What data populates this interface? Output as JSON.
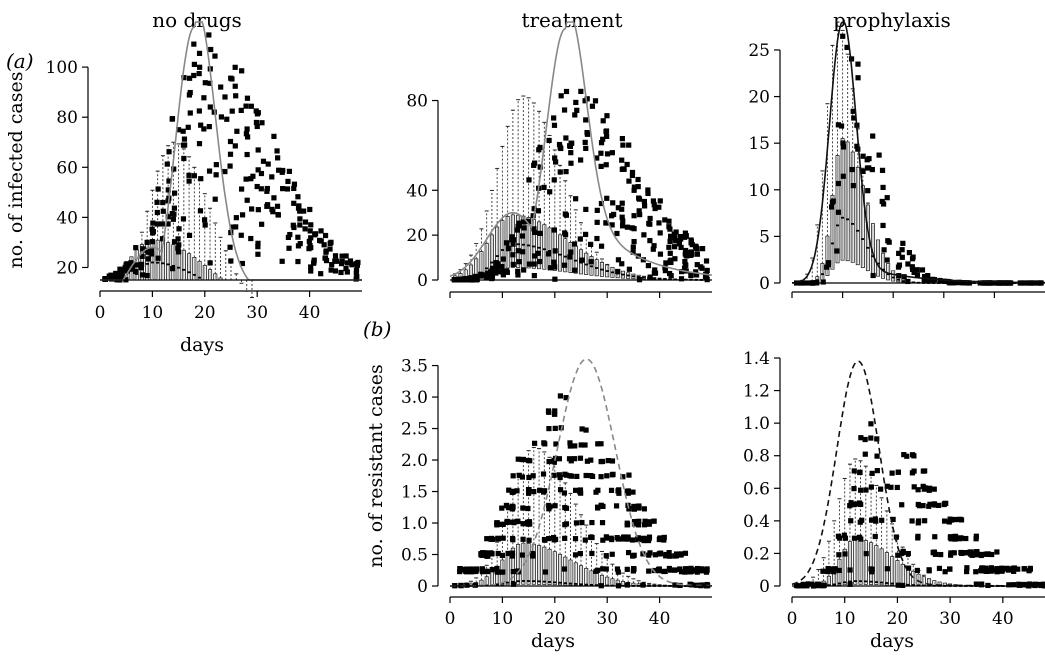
{
  "panel_labels": [
    "(a)",
    "(b)"
  ],
  "chart_data": [
    {
      "id": "infected-no-drugs",
      "type": "box",
      "title": "no drugs",
      "xlabel": "days",
      "ylabel": "no. of infected cases",
      "xlim": [
        0,
        50
      ],
      "ylim": [
        15,
        118
      ],
      "xticks": [
        0,
        10,
        20,
        30,
        40
      ],
      "yticks": [
        20,
        40,
        60,
        80,
        100
      ],
      "ytick_labels": [
        "20",
        "40",
        "60",
        "80",
        "100"
      ],
      "show_xtick_labels": true,
      "show_xlabel": true,
      "curve": {
        "style": "solid-grey",
        "peak_day": 18,
        "peak_value": 116,
        "shoulder_day": 10,
        "shoulder_value": 28,
        "sigma": 3.6,
        "tail": 45
      },
      "median": {
        "peak_day": 10,
        "peak_value": 22,
        "sigma": 7,
        "skew": 1.6
      },
      "q3": {
        "peak_day": 10,
        "peak_value": 31,
        "sigma": 8,
        "skew": 1.4
      },
      "whisker": {
        "peak_day": 14,
        "peak_value": 70,
        "sigma": 6,
        "skew": 1.2
      },
      "outliers": {
        "peak_day": 20,
        "peak_value": 100,
        "sigma": 9,
        "skew": 1.4,
        "count": 300,
        "seed": 11,
        "floor": 15
      }
    },
    {
      "id": "infected-treatment",
      "type": "box",
      "title": "treatment",
      "xlabel": "",
      "ylabel": "",
      "xlim": [
        0,
        50
      ],
      "ylim": [
        0,
        115
      ],
      "xticks": [
        0,
        10,
        20,
        30,
        40
      ],
      "yticks": [
        0,
        20,
        40,
        80
      ],
      "ytick_labels": [
        "0",
        "20",
        "40",
        "80"
      ],
      "show_xtick_labels": false,
      "show_xlabel": false,
      "curve": {
        "style": "solid-grey",
        "peak_day": 22,
        "peak_value": 112,
        "shoulder_day": 12,
        "shoulder_value": 30,
        "sigma": 3.6,
        "tail": 50
      },
      "median": {
        "peak_day": 12,
        "peak_value": 16,
        "sigma": 6,
        "skew": 1.8
      },
      "q3": {
        "peak_day": 12,
        "peak_value": 29,
        "sigma": 7,
        "skew": 1.5
      },
      "whisker": {
        "peak_day": 14,
        "peak_value": 82,
        "sigma": 6,
        "skew": 1.2
      },
      "outliers": {
        "peak_day": 22,
        "peak_value": 90,
        "sigma": 9,
        "skew": 1.5,
        "count": 340,
        "seed": 23,
        "floor": 0
      }
    },
    {
      "id": "infected-prophylaxis",
      "type": "box",
      "title": "prophylaxis",
      "xlabel": "",
      "ylabel": "",
      "xlim": [
        0,
        50
      ],
      "ylim": [
        0,
        28
      ],
      "xticks": [
        0,
        10,
        20,
        30,
        40
      ],
      "yticks": [
        0,
        5,
        10,
        15,
        20,
        25
      ],
      "ytick_labels": [
        "0",
        "5",
        "10",
        "15",
        "20",
        "25"
      ],
      "show_xtick_labels": false,
      "show_xlabel": false,
      "curve": {
        "style": "solid-black",
        "peak_day": 10,
        "peak_value": 28,
        "shoulder_day": 10,
        "shoulder_value": 0,
        "sigma": 2.6,
        "tail": 3
      },
      "median": {
        "peak_day": 10,
        "peak_value": 7,
        "sigma": 3,
        "skew": 1.5
      },
      "q3": {
        "peak_day": 10,
        "peak_value": 15.5,
        "sigma": 3,
        "skew": 1.5
      },
      "whisker": {
        "peak_day": 9,
        "peak_value": 28,
        "sigma": 3,
        "skew": 1.3
      },
      "outliers": {
        "peak_day": 10,
        "peak_value": 27,
        "sigma": 3,
        "skew": 2.2,
        "count": 150,
        "seed": 37,
        "floor": 0
      }
    },
    {
      "id": "resistant-treatment",
      "type": "box",
      "title": "",
      "xlabel": "days",
      "ylabel": "no. of resistant cases",
      "xlim": [
        0,
        50
      ],
      "ylim": [
        0,
        3.62
      ],
      "xticks": [
        0,
        10,
        20,
        30,
        40
      ],
      "yticks": [
        0,
        0.5,
        1.0,
        1.5,
        2.0,
        2.5,
        3.0,
        3.5
      ],
      "ytick_labels": [
        "0",
        "0.5",
        "1.0",
        "1.5",
        "2.0",
        "2.5",
        "3.0",
        "3.5"
      ],
      "show_xtick_labels": true,
      "show_xlabel": true,
      "curve": {
        "style": "dashed-grey",
        "peak_day": 26,
        "peak_value": 3.6,
        "shoulder_day": 26,
        "shoulder_value": 0,
        "sigma": 5.5,
        "tail": 0.05
      },
      "median": {
        "peak_day": 14,
        "peak_value": 0.08,
        "sigma": 5,
        "skew": 1.5
      },
      "q3": {
        "peak_day": 14,
        "peak_value": 0.68,
        "sigma": 6,
        "skew": 1.5
      },
      "whisker": {
        "peak_day": 16,
        "peak_value": 2.2,
        "sigma": 6,
        "skew": 1.3
      },
      "outliers": {
        "peak_day": 20,
        "peak_value": 3.0,
        "sigma": 10,
        "skew": 1.3,
        "count": 420,
        "seed": 53,
        "floor": 0,
        "quantize": 0.25
      }
    },
    {
      "id": "resistant-prophylaxis",
      "type": "box",
      "title": "",
      "xlabel": "days",
      "ylabel": "",
      "xlim": [
        0,
        48
      ],
      "ylim": [
        0,
        1.4
      ],
      "xticks": [
        0,
        10,
        20,
        30,
        40
      ],
      "yticks": [
        0,
        0.2,
        0.4,
        0.6,
        0.8,
        1.0,
        1.2,
        1.4
      ],
      "ytick_labels": [
        "0",
        "0.2",
        "0.4",
        "0.6",
        "0.8",
        "1.0",
        "1.2",
        "1.4"
      ],
      "show_xtick_labels": true,
      "show_xlabel": true,
      "curve": {
        "style": "dashed-black",
        "peak_day": 12.5,
        "peak_value": 1.38,
        "shoulder_day": 12,
        "shoulder_value": 0,
        "sigma": 4,
        "tail": 0.03
      },
      "median": {
        "peak_day": 12,
        "peak_value": 0.03,
        "sigma": 4,
        "skew": 1.5
      },
      "q3": {
        "peak_day": 12,
        "peak_value": 0.29,
        "sigma": 4.5,
        "skew": 1.6
      },
      "whisker": {
        "peak_day": 12,
        "peak_value": 0.78,
        "sigma": 4.5,
        "skew": 1.3
      },
      "outliers": {
        "peak_day": 15,
        "peak_value": 1.0,
        "sigma": 7,
        "skew": 1.8,
        "count": 320,
        "seed": 71,
        "floor": 0,
        "quantize": 0.1
      }
    }
  ]
}
